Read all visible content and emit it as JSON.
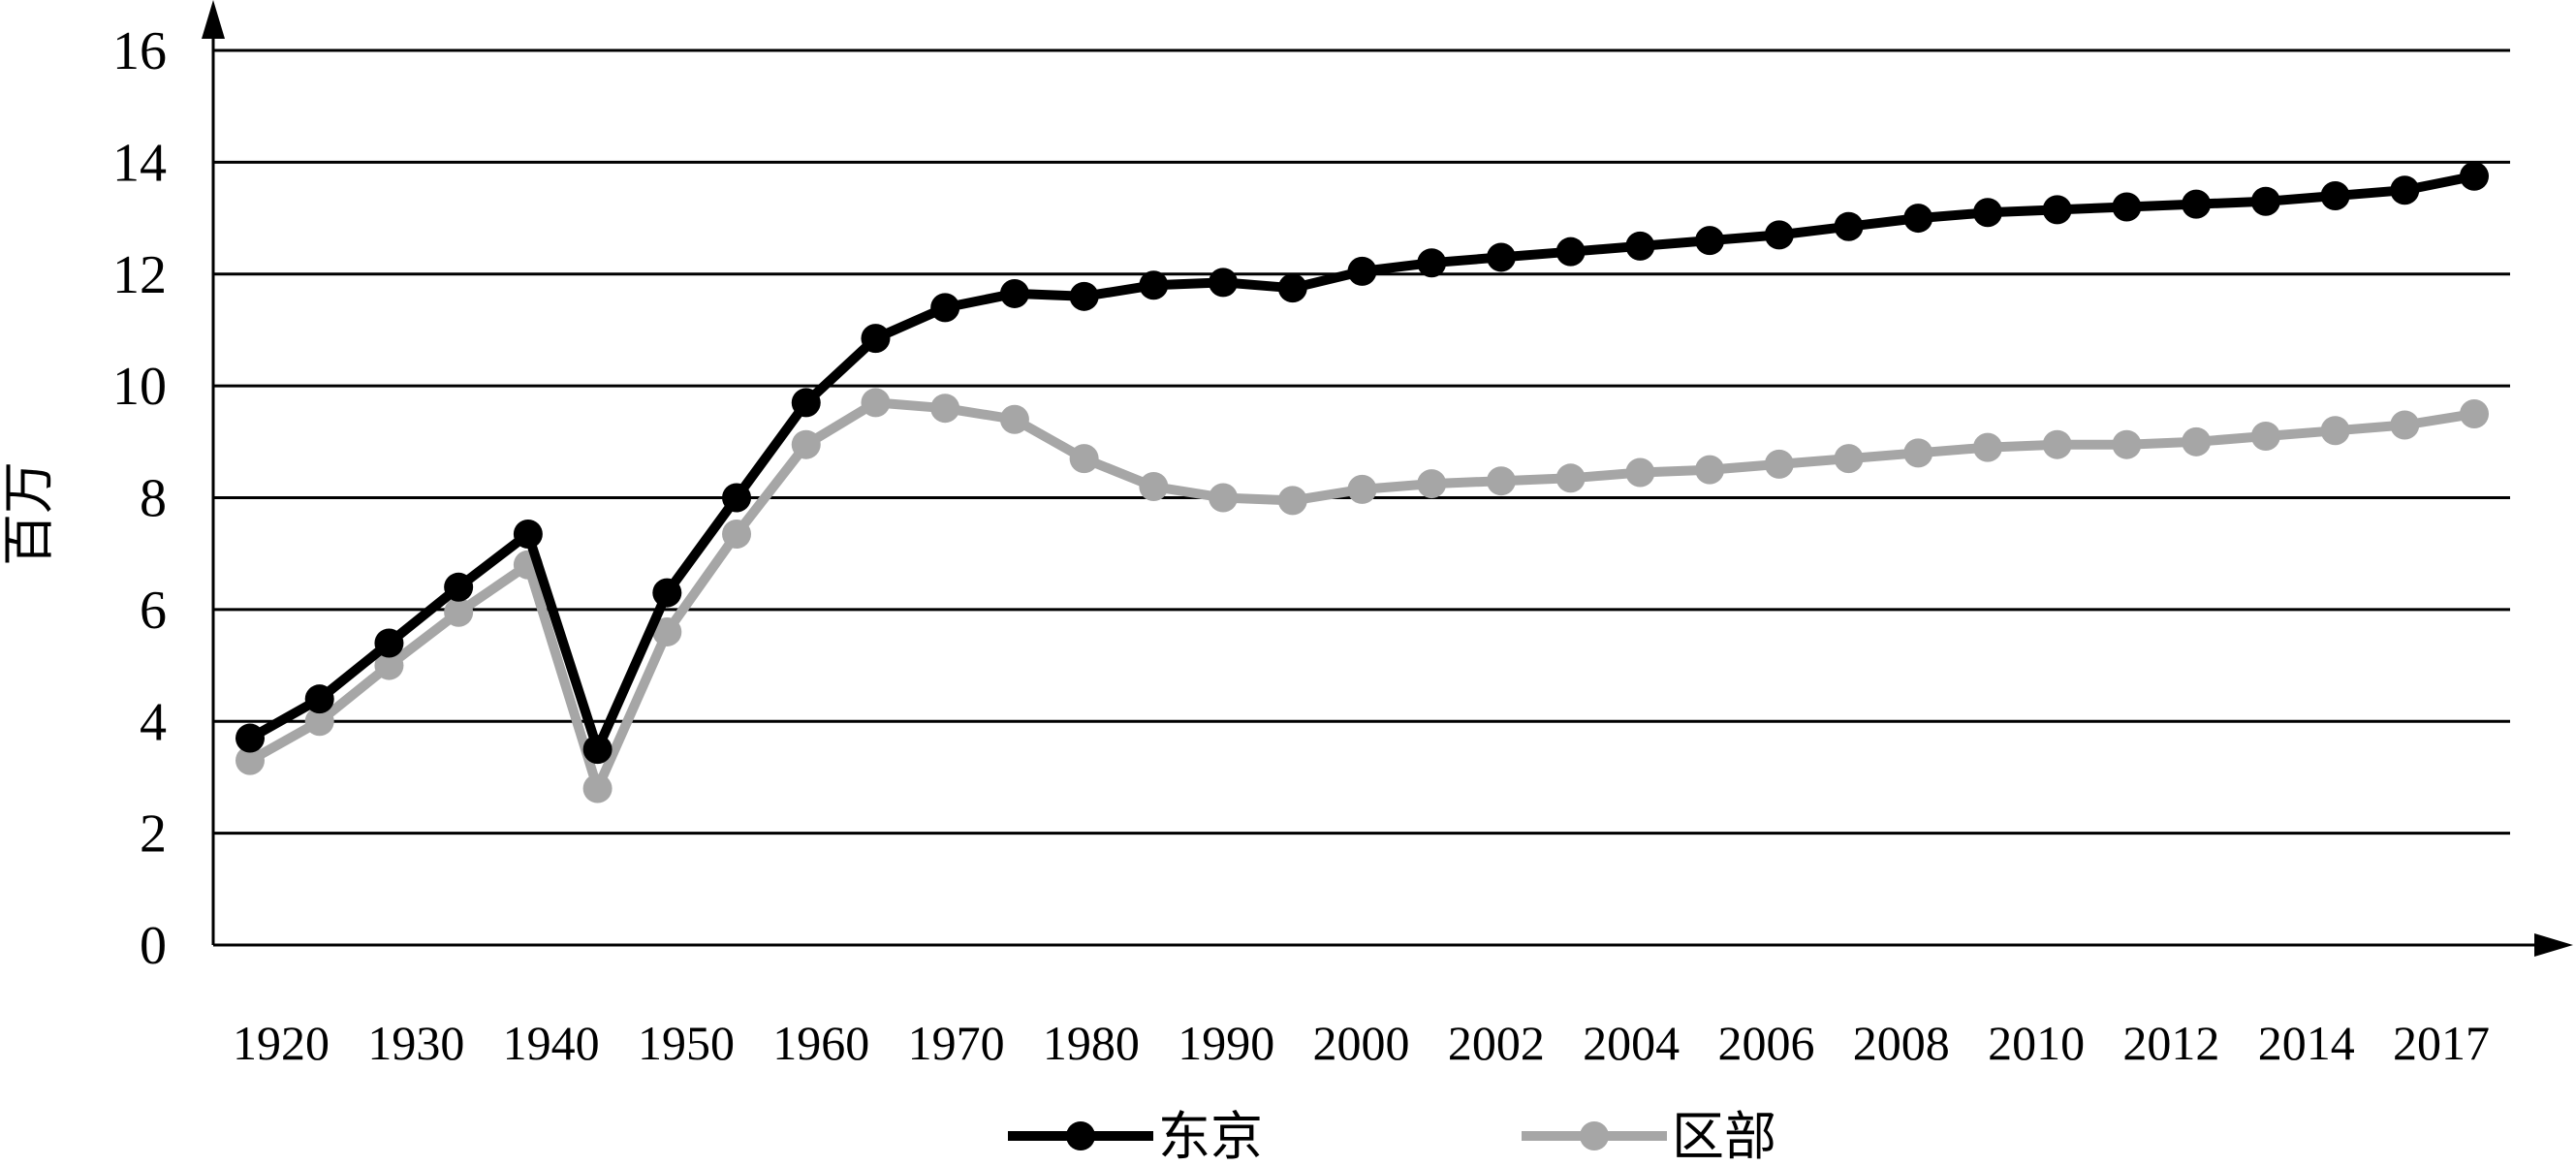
{
  "chart_data": {
    "type": "line",
    "title": "",
    "xlabel": "",
    "ylabel": "百万",
    "ylim": [
      0,
      16
    ],
    "yticks": [
      0,
      2,
      4,
      6,
      8,
      10,
      12,
      14,
      16
    ],
    "grid": true,
    "legend_position": "bottom",
    "x_tick_labels": [
      "1920",
      "1930",
      "1940",
      "1950",
      "1960",
      "1970",
      "1980",
      "1990",
      "2000",
      "2002",
      "2004",
      "2006",
      "2008",
      "2010",
      "2012",
      "2014",
      "2017"
    ],
    "x": [
      "1920",
      "1925",
      "1930",
      "1935",
      "1940",
      "1945",
      "1950",
      "1955",
      "1960",
      "1965",
      "1970",
      "1975",
      "1980",
      "1985",
      "1990",
      "1995",
      "2000",
      "2001",
      "2002",
      "2003",
      "2004",
      "2005",
      "2006",
      "2007",
      "2008",
      "2009",
      "2010",
      "2011",
      "2012",
      "2013",
      "2014",
      "2015",
      "2017"
    ],
    "series": [
      {
        "name": "东京",
        "color": "#000000",
        "values": [
          3.7,
          4.4,
          5.4,
          6.4,
          7.35,
          3.5,
          6.3,
          8.0,
          9.7,
          10.85,
          11.4,
          11.65,
          11.6,
          11.8,
          11.85,
          11.75,
          12.05,
          12.2,
          12.3,
          12.4,
          12.5,
          12.6,
          12.7,
          12.85,
          13.0,
          13.1,
          13.15,
          13.2,
          13.25,
          13.3,
          13.4,
          13.5,
          13.75
        ]
      },
      {
        "name": "区部",
        "color": "#a6a6a6",
        "values": [
          3.3,
          4.0,
          5.0,
          5.95,
          6.8,
          2.8,
          5.6,
          7.35,
          8.95,
          9.7,
          9.6,
          9.4,
          8.7,
          8.2,
          8.0,
          7.95,
          8.15,
          8.25,
          8.3,
          8.35,
          8.45,
          8.5,
          8.6,
          8.7,
          8.8,
          8.9,
          8.95,
          8.95,
          9.0,
          9.1,
          9.2,
          9.3,
          9.5
        ]
      }
    ]
  }
}
